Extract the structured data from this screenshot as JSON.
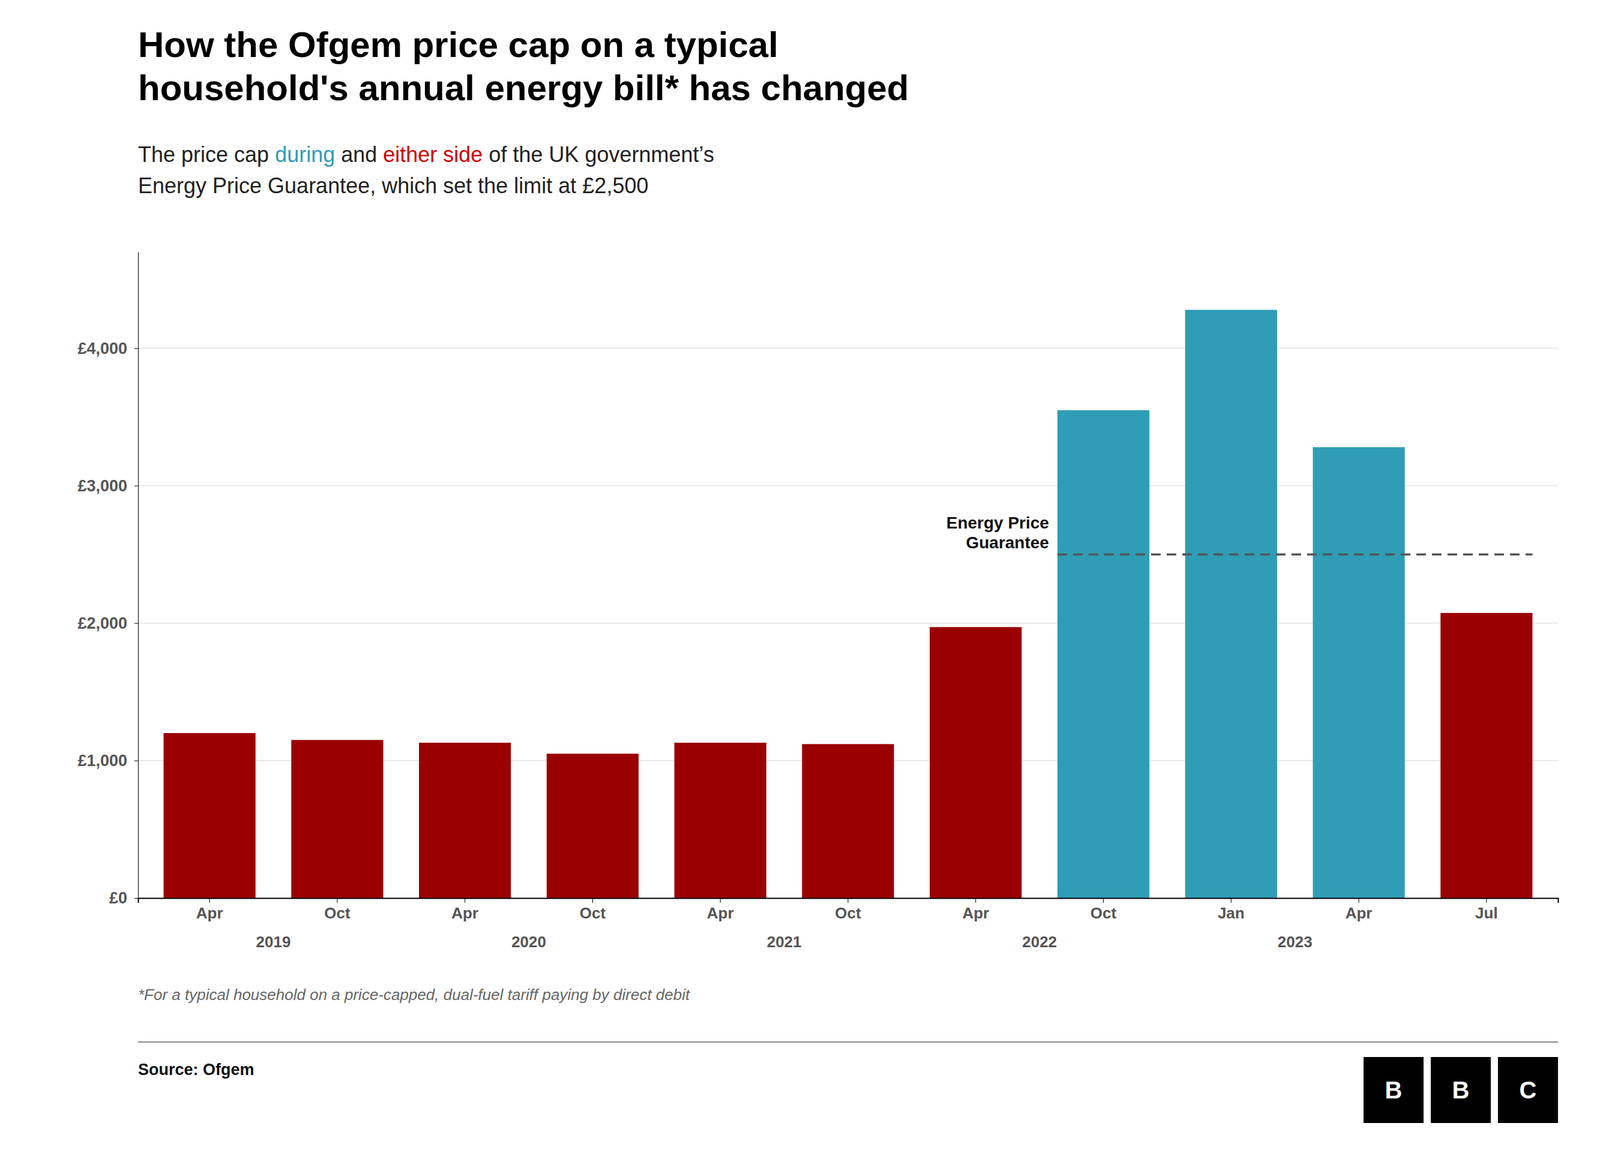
{
  "chart_data": {
    "type": "bar",
    "title": [
      "How the Ofgem price cap on a typical",
      "household's annual energy bill* has changed"
    ],
    "subtitle": [
      [
        {
          "text": "The price cap ",
          "color": "#222222"
        },
        {
          "text": "during",
          "color": "#2e9db5"
        },
        {
          "text": " and ",
          "color": "#222222"
        },
        {
          "text": "either side",
          "color": "#cc0000"
        },
        {
          "text": " of the UK government’s",
          "color": "#222222"
        }
      ],
      [
        {
          "text": "Energy Price Guarantee, which set the limit at £2,500",
          "color": "#222222"
        }
      ]
    ],
    "categories": [
      "Apr",
      "Oct",
      "Apr",
      "Oct",
      "Apr",
      "Oct",
      "Apr",
      "Oct",
      "Jan",
      "Apr",
      "Jul"
    ],
    "category_years": [
      "2019",
      null,
      "2020",
      null,
      "2021",
      null,
      "2022",
      null,
      "2023",
      null,
      null
    ],
    "values": [
      1200,
      1150,
      1130,
      1050,
      1130,
      1120,
      1971,
      3549,
      4279,
      3280,
      2074
    ],
    "colors": [
      "#9b0000",
      "#9b0000",
      "#9b0000",
      "#9b0000",
      "#9b0000",
      "#9b0000",
      "#9b0000",
      "#2e9db5",
      "#2e9db5",
      "#2e9db5",
      "#9b0000"
    ],
    "ylim": [
      0,
      4700
    ],
    "yticks": [
      {
        "value": 0,
        "label": "£0"
      },
      {
        "value": 1000,
        "label": "£1,000"
      },
      {
        "value": 2000,
        "label": "£2,000"
      },
      {
        "value": 3000,
        "label": "£3,000"
      },
      {
        "value": 4000,
        "label": "£4,000"
      }
    ],
    "grid": true,
    "annotations": [
      {
        "type": "hline",
        "value": 2500,
        "start_index": 7,
        "color": "#555555",
        "line_style": "dashed",
        "label": [
          "Energy Price",
          "Guarantee"
        ]
      }
    ],
    "footnote": "*For a typical household on a price-capped, dual-fuel tariff paying by direct debit",
    "source": "Source: Ofgem",
    "logo": [
      "B",
      "B",
      "C"
    ]
  }
}
